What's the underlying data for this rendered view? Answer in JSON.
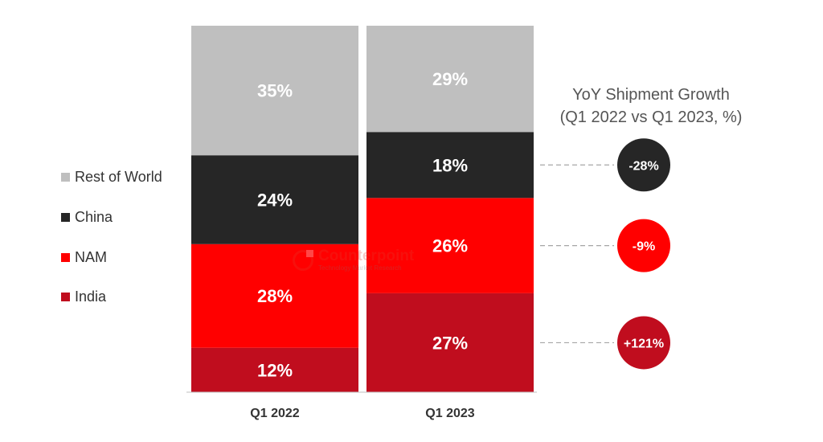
{
  "chart_data": {
    "type": "bar",
    "stacked": true,
    "normalized": true,
    "categories": [
      "Q1 2022",
      "Q1 2023"
    ],
    "series": [
      {
        "name": "India",
        "values": [
          12,
          27
        ],
        "color": "#c00d1e"
      },
      {
        "name": "NAM",
        "values": [
          28,
          26
        ],
        "color": "#ff0000"
      },
      {
        "name": "China",
        "values": [
          24,
          18
        ],
        "color": "#262626"
      },
      {
        "name": "Rest of World",
        "values": [
          35,
          29
        ],
        "color": "#bfbfbf"
      }
    ],
    "value_labels": [
      [
        "12%",
        "28%",
        "24%",
        "35%"
      ],
      [
        "27%",
        "26%",
        "18%",
        "29%"
      ]
    ],
    "ylim": [
      0,
      100
    ],
    "grid": false,
    "legend": {
      "position": "left",
      "entries": [
        "Rest of World",
        "China",
        "NAM",
        "India"
      ]
    },
    "yoy": {
      "title_line1": "YoY Shipment Growth",
      "title_line2": "(Q1 2022 vs Q1 2023, %)",
      "items": [
        {
          "series": "China",
          "label": "-28%",
          "color": "#262626"
        },
        {
          "series": "NAM",
          "label": "-9%",
          "color": "#ff0000"
        },
        {
          "series": "India",
          "label": "+121%",
          "color": "#c00d1e"
        }
      ]
    }
  },
  "watermark": {
    "name": "Counterpoint",
    "tagline": "Technology Market Research"
  }
}
